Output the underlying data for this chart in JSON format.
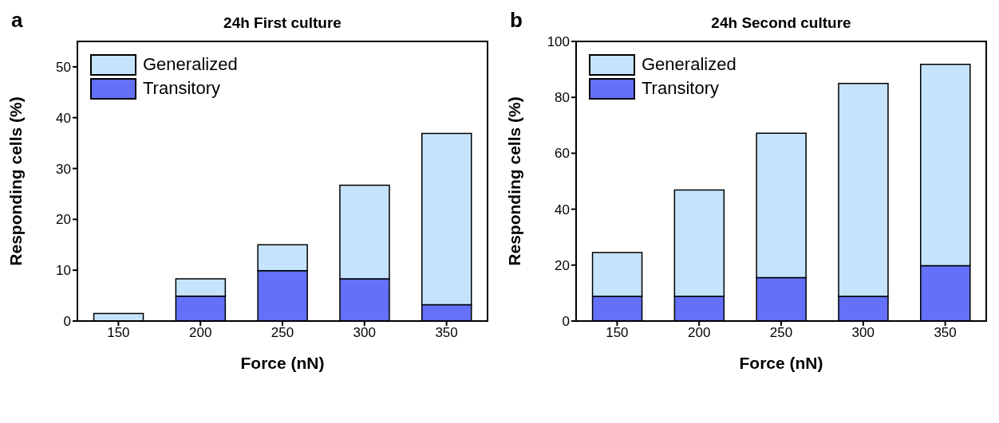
{
  "chart_data": [
    {
      "type": "bar",
      "title": "24h First culture",
      "xlabel": "Force (nN)",
      "ylabel": "Responding cells (%)",
      "annotations": [
        "a"
      ],
      "categories": [
        "150",
        "200",
        "250",
        "300",
        "350"
      ],
      "stacked": true,
      "ylim": [
        0,
        55
      ],
      "yticks": [
        0,
        10,
        20,
        30,
        40,
        50
      ],
      "legend": "top left",
      "grid": false,
      "series": [
        {
          "name": "Transitory",
          "color": "#6470fa",
          "values": [
            0,
            4.9,
            9.9,
            8.3,
            3.2
          ]
        },
        {
          "name": "Generalized",
          "color": "#c5e3fb",
          "values": [
            1.5,
            3.4,
            5.1,
            18.4,
            33.7
          ]
        }
      ]
    },
    {
      "type": "bar",
      "title": "24h Second culture",
      "xlabel": "Force (nN)",
      "ylabel": "Responding cells (%)",
      "annotations": [
        "b"
      ],
      "categories": [
        "150",
        "200",
        "250",
        "300",
        "350"
      ],
      "stacked": true,
      "ylim": [
        0,
        100
      ],
      "yticks": [
        0,
        20,
        40,
        60,
        80,
        100
      ],
      "legend": "top left",
      "grid": false,
      "series": [
        {
          "name": "Transitory",
          "color": "#6470fa",
          "values": [
            8.8,
            8.8,
            15.5,
            8.8,
            19.8
          ]
        },
        {
          "name": "Generalized",
          "color": "#c5e3fb",
          "values": [
            15.7,
            38.1,
            51.7,
            76.2,
            72
          ]
        }
      ]
    }
  ]
}
